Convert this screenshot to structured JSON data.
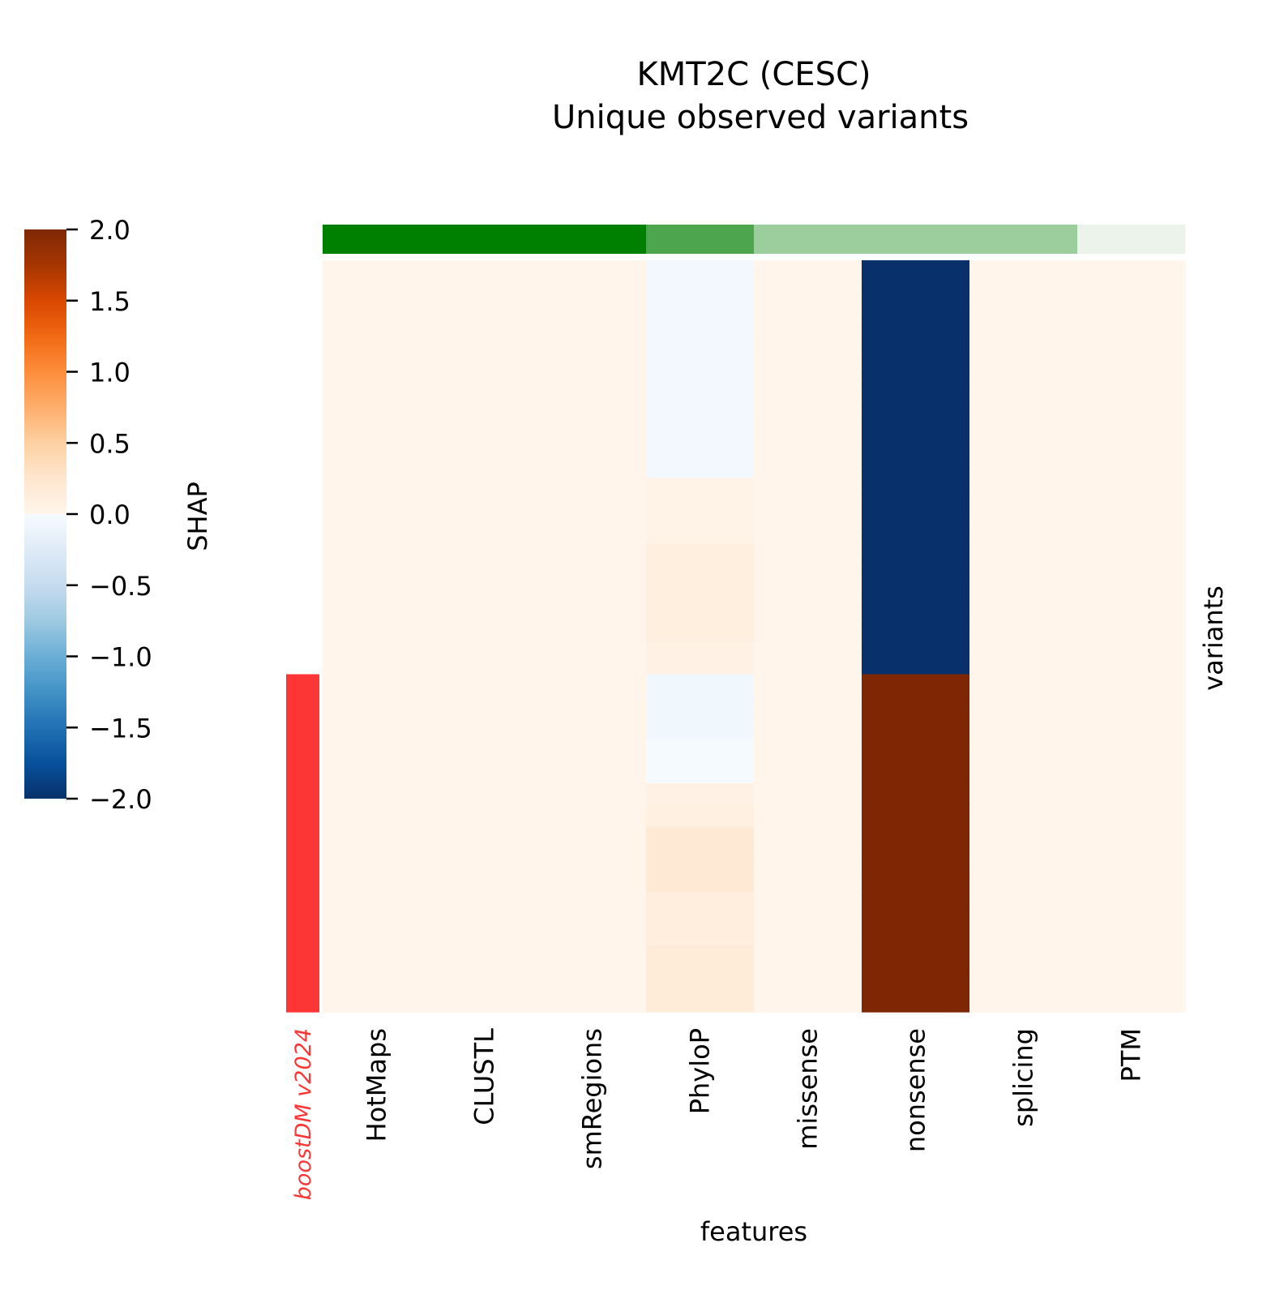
{
  "chart_data": {
    "type": "heatmap",
    "title": "KMT2C (CESC)",
    "subtitle": "Unique observed variants",
    "xlabel": "features",
    "ylabel": "variants",
    "colorbar": {
      "label": "SHAP",
      "range": [
        -2.0,
        2.0
      ],
      "ticks": [
        "2.0",
        "1.5",
        "1.0",
        "0.5",
        "0.0",
        "−0.5",
        "−1.0",
        "−1.5",
        "−2.0"
      ],
      "tick_values": [
        2.0,
        1.5,
        1.0,
        0.5,
        0.0,
        -0.5,
        -1.0,
        -1.5,
        -2.0
      ],
      "negative_colors": [
        "#f7fbff",
        "#deebf7",
        "#c6dbef",
        "#9ecae1",
        "#6baed6",
        "#4292c6",
        "#2171b5",
        "#08519c",
        "#08306b"
      ],
      "positive_colors": [
        "#fff5eb",
        "#fee6ce",
        "#fdd0a2",
        "#fdae6b",
        "#fd8d3c",
        "#f16913",
        "#d94801",
        "#a63603",
        "#7f2704"
      ]
    },
    "annotation_column": {
      "label": "boostDM v2024",
      "color": "#fc3535"
    },
    "features": [
      "HotMaps",
      "CLUSTL",
      "smRegions",
      "PhyloP",
      "missense",
      "nonsense",
      "splicing",
      "PTM"
    ],
    "feature_group_colors": [
      "#008000",
      "#008000",
      "#008000",
      "#4da64d",
      "#9ccd9c",
      "#9ccd9c",
      "#9ccd9c",
      "#ebf3eb"
    ],
    "variants": [
      {
        "driver": false,
        "values": [
          0,
          0,
          0,
          -0.05,
          0,
          -2,
          0,
          0
        ]
      },
      {
        "driver": false,
        "values": [
          0,
          0,
          0,
          -0.05,
          0,
          -2,
          0,
          0
        ]
      },
      {
        "driver": false,
        "values": [
          0,
          0,
          0,
          -0.05,
          0,
          -2,
          0,
          0
        ]
      },
      {
        "driver": false,
        "values": [
          0,
          0,
          0,
          -0.05,
          0,
          -2,
          0,
          0
        ]
      },
      {
        "driver": false,
        "values": [
          0,
          0,
          0,
          -0.05,
          0,
          -2,
          0,
          0
        ]
      },
      {
        "driver": false,
        "values": [
          0,
          0,
          0,
          -0.05,
          0,
          -2,
          0,
          0
        ]
      },
      {
        "driver": false,
        "values": [
          0,
          0,
          0,
          -0.05,
          0,
          -2,
          0,
          0
        ]
      },
      {
        "driver": false,
        "values": [
          0,
          0,
          0,
          -0.05,
          0,
          -2,
          0,
          0
        ]
      },
      {
        "driver": false,
        "values": [
          0,
          0,
          0,
          -0.05,
          0,
          -2,
          0,
          0
        ]
      },
      {
        "driver": false,
        "values": [
          0,
          0,
          0,
          -0.05,
          0,
          -2,
          0,
          0
        ]
      },
      {
        "driver": false,
        "values": [
          0,
          0,
          0,
          -0.05,
          0,
          -2,
          0,
          0
        ]
      },
      {
        "driver": false,
        "values": [
          0,
          0,
          0,
          -0.05,
          0,
          -2,
          0,
          0
        ]
      },
      {
        "driver": false,
        "values": [
          0,
          0,
          0,
          -0.05,
          0,
          -2,
          0,
          0
        ]
      },
      {
        "driver": false,
        "values": [
          0,
          0,
          0,
          -0.05,
          0,
          -2,
          0,
          0
        ]
      },
      {
        "driver": false,
        "values": [
          0,
          0,
          0,
          -0.05,
          0,
          -2,
          0,
          0
        ]
      },
      {
        "driver": false,
        "values": [
          0,
          0,
          0,
          -0.05,
          0,
          -2,
          0,
          0
        ]
      },
      {
        "driver": false,
        "values": [
          0,
          0,
          0,
          -0.05,
          0,
          -2,
          0,
          0
        ]
      },
      {
        "driver": false,
        "values": [
          0,
          0,
          0,
          -0.05,
          0,
          -2,
          0,
          0
        ]
      },
      {
        "driver": false,
        "values": [
          0,
          0,
          0,
          -0.05,
          0,
          -2,
          0,
          0
        ]
      },
      {
        "driver": false,
        "values": [
          0,
          0,
          0,
          -0.05,
          0,
          -2,
          0,
          0
        ]
      },
      {
        "driver": false,
        "values": [
          0,
          0,
          0,
          0.03,
          0,
          -2,
          0,
          0
        ]
      },
      {
        "driver": false,
        "values": [
          0,
          0,
          0,
          0.03,
          0,
          -2,
          0,
          0
        ]
      },
      {
        "driver": false,
        "values": [
          0,
          0,
          0,
          0.03,
          0,
          -2,
          0,
          0
        ]
      },
      {
        "driver": false,
        "values": [
          0,
          0,
          0,
          0.03,
          0,
          -2,
          0,
          0
        ]
      },
      {
        "driver": false,
        "values": [
          0,
          0,
          0,
          0.03,
          0,
          -2,
          0,
          0
        ]
      },
      {
        "driver": false,
        "values": [
          0,
          0,
          0,
          0.03,
          0,
          -2,
          0,
          0
        ]
      },
      {
        "driver": false,
        "values": [
          0,
          0,
          0,
          0.1,
          0,
          -2,
          0,
          0
        ]
      },
      {
        "driver": false,
        "values": [
          0,
          0,
          0,
          0.1,
          0,
          -2,
          0,
          0
        ]
      },
      {
        "driver": false,
        "values": [
          0,
          0,
          0,
          0.1,
          0,
          -2,
          0,
          0
        ]
      },
      {
        "driver": false,
        "values": [
          0,
          0,
          0,
          0.1,
          0,
          -2,
          0,
          0
        ]
      },
      {
        "driver": false,
        "values": [
          0,
          0,
          0,
          0.1,
          0,
          -2,
          0,
          0
        ]
      },
      {
        "driver": false,
        "values": [
          0,
          0,
          0,
          0.1,
          0,
          -2,
          0,
          0
        ]
      },
      {
        "driver": false,
        "values": [
          0,
          0,
          0,
          0.1,
          0,
          -2,
          0,
          0
        ]
      },
      {
        "driver": false,
        "values": [
          0,
          0,
          0,
          0.1,
          0,
          -2,
          0,
          0
        ]
      },
      {
        "driver": false,
        "values": [
          0,
          0,
          0,
          0.1,
          0,
          -2,
          0,
          0
        ]
      },
      {
        "driver": false,
        "values": [
          0,
          0,
          0,
          0.06,
          0,
          -2,
          0,
          0
        ]
      },
      {
        "driver": false,
        "values": [
          0,
          0,
          0,
          0.06,
          0,
          -2,
          0,
          0
        ]
      },
      {
        "driver": false,
        "values": [
          0,
          0,
          0,
          0.06,
          0,
          -2,
          0,
          0
        ]
      },
      {
        "driver": true,
        "values": [
          0,
          0,
          0,
          -0.07,
          0,
          2,
          0,
          0
        ]
      },
      {
        "driver": true,
        "values": [
          0,
          0,
          0,
          -0.07,
          0,
          2,
          0,
          0
        ]
      },
      {
        "driver": true,
        "values": [
          0,
          0,
          0,
          -0.07,
          0,
          2,
          0,
          0
        ]
      },
      {
        "driver": true,
        "values": [
          0,
          0,
          0,
          -0.07,
          0,
          2,
          0,
          0
        ]
      },
      {
        "driver": true,
        "values": [
          0,
          0,
          0,
          -0.07,
          0,
          2,
          0,
          0
        ]
      },
      {
        "driver": true,
        "values": [
          0,
          0,
          0,
          -0.07,
          0,
          2,
          0,
          0
        ]
      },
      {
        "driver": true,
        "values": [
          0,
          0,
          0,
          -0.02,
          0,
          2,
          0,
          0
        ]
      },
      {
        "driver": true,
        "values": [
          0,
          0,
          0,
          -0.02,
          0,
          2,
          0,
          0
        ]
      },
      {
        "driver": true,
        "values": [
          0,
          0,
          0,
          -0.02,
          0,
          2,
          0,
          0
        ]
      },
      {
        "driver": true,
        "values": [
          0,
          0,
          0,
          -0.02,
          0,
          2,
          0,
          0
        ]
      },
      {
        "driver": true,
        "values": [
          0,
          0,
          0,
          0.05,
          0,
          2,
          0,
          0
        ]
      },
      {
        "driver": true,
        "values": [
          0,
          0,
          0,
          0.05,
          0,
          2,
          0,
          0
        ]
      },
      {
        "driver": true,
        "values": [
          0,
          0,
          0,
          0.09,
          0,
          2,
          0,
          0
        ]
      },
      {
        "driver": true,
        "values": [
          0,
          0,
          0,
          0.09,
          0,
          2,
          0,
          0
        ]
      },
      {
        "driver": true,
        "values": [
          0,
          0,
          0,
          0.2,
          0,
          2,
          0,
          0
        ]
      },
      {
        "driver": true,
        "values": [
          0,
          0,
          0,
          0.2,
          0,
          2,
          0,
          0
        ]
      },
      {
        "driver": true,
        "values": [
          0,
          0,
          0,
          0.2,
          0,
          2,
          0,
          0
        ]
      },
      {
        "driver": true,
        "values": [
          0,
          0,
          0,
          0.2,
          0,
          2,
          0,
          0
        ]
      },
      {
        "driver": true,
        "values": [
          0,
          0,
          0,
          0.2,
          0,
          2,
          0,
          0
        ]
      },
      {
        "driver": true,
        "values": [
          0,
          0,
          0,
          0.2,
          0,
          2,
          0,
          0
        ]
      },
      {
        "driver": true,
        "values": [
          0,
          0,
          0,
          0.12,
          0,
          2,
          0,
          0
        ]
      },
      {
        "driver": true,
        "values": [
          0,
          0,
          0,
          0.12,
          0,
          2,
          0,
          0
        ]
      },
      {
        "driver": true,
        "values": [
          0,
          0,
          0,
          0.12,
          0,
          2,
          0,
          0
        ]
      },
      {
        "driver": true,
        "values": [
          0,
          0,
          0,
          0.12,
          0,
          2,
          0,
          0
        ]
      },
      {
        "driver": true,
        "values": [
          0,
          0,
          0,
          0.12,
          0,
          2,
          0,
          0
        ]
      },
      {
        "driver": true,
        "values": [
          0,
          0,
          0,
          0.16,
          0,
          2,
          0,
          0
        ]
      },
      {
        "driver": true,
        "values": [
          0,
          0,
          0,
          0.16,
          0,
          2,
          0,
          0
        ]
      },
      {
        "driver": true,
        "values": [
          0,
          0,
          0,
          0.16,
          0,
          2,
          0,
          0
        ]
      },
      {
        "driver": true,
        "values": [
          0,
          0,
          0,
          0.16,
          0,
          2,
          0,
          0
        ]
      },
      {
        "driver": true,
        "values": [
          0,
          0,
          0,
          0.16,
          0,
          2,
          0,
          0
        ]
      },
      {
        "driver": true,
        "values": [
          0,
          0,
          0,
          0.16,
          0,
          2,
          0,
          0
        ]
      }
    ]
  }
}
